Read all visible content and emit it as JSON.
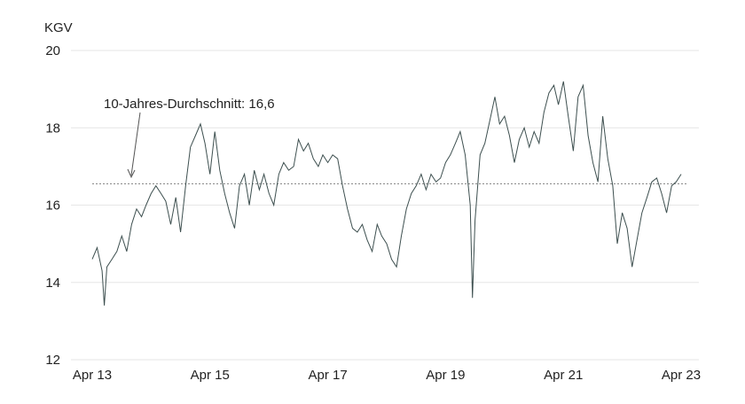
{
  "chart_data": {
    "type": "line",
    "ylabel": "KGV",
    "ylim": [
      12,
      20
    ],
    "yticks": [
      "20",
      "18",
      "16",
      "14",
      "12"
    ],
    "xlim": [
      "2013-04-01",
      "2023-04-01"
    ],
    "xticks": [
      {
        "label": "Apr 13",
        "date": "2013-04-01"
      },
      {
        "label": "Apr 15",
        "date": "2015-04-01"
      },
      {
        "label": "Apr 17",
        "date": "2017-04-01"
      },
      {
        "label": "Apr 19",
        "date": "2019-04-01"
      },
      {
        "label": "Apr 21",
        "date": "2021-04-01"
      },
      {
        "label": "Apr 23",
        "date": "2023-04-01"
      }
    ],
    "grid": true,
    "reference_line": {
      "value": 16.55,
      "label": "10-Jahres-Durchschnitt: 16,6"
    },
    "colors": {
      "series": "#3d4f4f",
      "grid": "#e6e6e6",
      "reference": "#8a8a8a"
    },
    "series": [
      {
        "points": [
          [
            "2013-04-01",
            14.6
          ],
          [
            "2013-05-01",
            14.9
          ],
          [
            "2013-06-01",
            14.3
          ],
          [
            "2013-06-15",
            13.4
          ],
          [
            "2013-07-01",
            14.4
          ],
          [
            "2013-08-01",
            14.6
          ],
          [
            "2013-09-01",
            14.8
          ],
          [
            "2013-10-01",
            15.2
          ],
          [
            "2013-11-01",
            14.8
          ],
          [
            "2013-12-01",
            15.5
          ],
          [
            "2014-01-01",
            15.9
          ],
          [
            "2014-02-01",
            15.7
          ],
          [
            "2014-03-01",
            16.0
          ],
          [
            "2014-04-01",
            16.3
          ],
          [
            "2014-05-01",
            16.5
          ],
          [
            "2014-06-01",
            16.3
          ],
          [
            "2014-07-01",
            16.1
          ],
          [
            "2014-08-01",
            15.5
          ],
          [
            "2014-09-01",
            16.2
          ],
          [
            "2014-10-01",
            15.3
          ],
          [
            "2014-11-01",
            16.5
          ],
          [
            "2014-12-01",
            17.5
          ],
          [
            "2015-01-01",
            17.8
          ],
          [
            "2015-02-01",
            18.1
          ],
          [
            "2015-03-01",
            17.6
          ],
          [
            "2015-04-01",
            16.8
          ],
          [
            "2015-05-01",
            17.9
          ],
          [
            "2015-06-01",
            16.9
          ],
          [
            "2015-07-01",
            16.3
          ],
          [
            "2015-08-01",
            15.8
          ],
          [
            "2015-09-01",
            15.4
          ],
          [
            "2015-10-01",
            16.5
          ],
          [
            "2015-11-01",
            16.8
          ],
          [
            "2015-12-01",
            16.0
          ],
          [
            "2016-01-01",
            16.9
          ],
          [
            "2016-02-01",
            16.4
          ],
          [
            "2016-03-01",
            16.8
          ],
          [
            "2016-04-01",
            16.3
          ],
          [
            "2016-05-01",
            16.0
          ],
          [
            "2016-06-01",
            16.8
          ],
          [
            "2016-07-01",
            17.1
          ],
          [
            "2016-08-01",
            16.9
          ],
          [
            "2016-09-01",
            17.0
          ],
          [
            "2016-10-01",
            17.7
          ],
          [
            "2016-11-01",
            17.4
          ],
          [
            "2016-12-01",
            17.6
          ],
          [
            "2017-01-01",
            17.2
          ],
          [
            "2017-02-01",
            17.0
          ],
          [
            "2017-03-01",
            17.3
          ],
          [
            "2017-04-01",
            17.1
          ],
          [
            "2017-05-01",
            17.3
          ],
          [
            "2017-06-01",
            17.2
          ],
          [
            "2017-07-01",
            16.5
          ],
          [
            "2017-08-01",
            15.9
          ],
          [
            "2017-09-01",
            15.4
          ],
          [
            "2017-10-01",
            15.3
          ],
          [
            "2017-11-01",
            15.5
          ],
          [
            "2017-12-01",
            15.1
          ],
          [
            "2018-01-01",
            14.8
          ],
          [
            "2018-02-01",
            15.5
          ],
          [
            "2018-03-01",
            15.2
          ],
          [
            "2018-04-01",
            15.0
          ],
          [
            "2018-05-01",
            14.6
          ],
          [
            "2018-06-01",
            14.4
          ],
          [
            "2018-07-01",
            15.2
          ],
          [
            "2018-08-01",
            15.9
          ],
          [
            "2018-09-01",
            16.3
          ],
          [
            "2018-10-01",
            16.5
          ],
          [
            "2018-11-01",
            16.8
          ],
          [
            "2018-12-01",
            16.4
          ],
          [
            "2019-01-01",
            16.8
          ],
          [
            "2019-02-01",
            16.6
          ],
          [
            "2019-03-01",
            16.7
          ],
          [
            "2019-04-01",
            17.1
          ],
          [
            "2019-05-01",
            17.3
          ],
          [
            "2019-06-01",
            17.6
          ],
          [
            "2019-07-01",
            17.9
          ],
          [
            "2019-08-01",
            17.3
          ],
          [
            "2019-09-01",
            16.0
          ],
          [
            "2019-09-15",
            13.6
          ],
          [
            "2019-10-01",
            15.6
          ],
          [
            "2019-11-01",
            17.3
          ],
          [
            "2019-12-01",
            17.6
          ],
          [
            "2020-01-01",
            18.2
          ],
          [
            "2020-02-01",
            18.8
          ],
          [
            "2020-03-01",
            18.1
          ],
          [
            "2020-04-01",
            18.3
          ],
          [
            "2020-05-01",
            17.8
          ],
          [
            "2020-06-01",
            17.1
          ],
          [
            "2020-07-01",
            17.7
          ],
          [
            "2020-08-01",
            18.0
          ],
          [
            "2020-09-01",
            17.5
          ],
          [
            "2020-10-01",
            17.9
          ],
          [
            "2020-11-01",
            17.6
          ],
          [
            "2020-12-01",
            18.4
          ],
          [
            "2021-01-01",
            18.9
          ],
          [
            "2021-02-01",
            19.1
          ],
          [
            "2021-03-01",
            18.6
          ],
          [
            "2021-04-01",
            19.2
          ],
          [
            "2021-05-01",
            18.3
          ],
          [
            "2021-06-01",
            17.4
          ],
          [
            "2021-07-01",
            18.8
          ],
          [
            "2021-08-01",
            19.1
          ],
          [
            "2021-09-01",
            17.8
          ],
          [
            "2021-10-01",
            17.1
          ],
          [
            "2021-11-01",
            16.6
          ],
          [
            "2021-12-01",
            18.3
          ],
          [
            "2022-01-01",
            17.2
          ],
          [
            "2022-02-01",
            16.5
          ],
          [
            "2022-03-01",
            15.0
          ],
          [
            "2022-04-01",
            15.8
          ],
          [
            "2022-05-01",
            15.4
          ],
          [
            "2022-06-01",
            14.4
          ],
          [
            "2022-07-01",
            15.1
          ],
          [
            "2022-08-01",
            15.8
          ],
          [
            "2022-09-01",
            16.2
          ],
          [
            "2022-10-01",
            16.6
          ],
          [
            "2022-11-01",
            16.7
          ],
          [
            "2022-12-01",
            16.3
          ],
          [
            "2023-01-01",
            15.8
          ],
          [
            "2023-02-01",
            16.5
          ],
          [
            "2023-03-01",
            16.6
          ],
          [
            "2023-04-01",
            16.8
          ]
        ]
      }
    ]
  }
}
